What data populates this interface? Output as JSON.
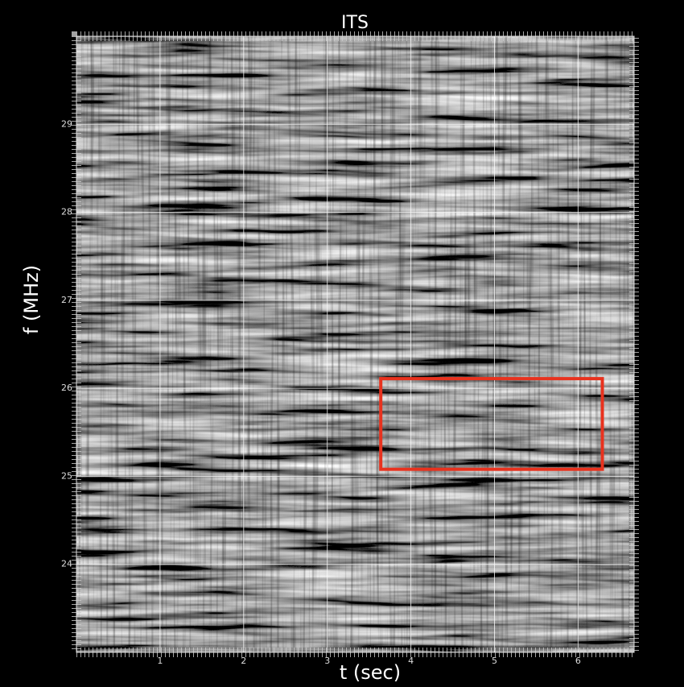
{
  "chart_data": {
    "type": "spectrogram",
    "title": "ITS",
    "x_label": "t (sec)",
    "y_label": "f (MHz)",
    "xlim": [
      0,
      6.67
    ],
    "ylim": [
      23,
      30
    ],
    "xticks": [
      1,
      2,
      3,
      4,
      5,
      6
    ],
    "yticks": [
      24,
      25,
      26,
      27,
      28,
      29
    ],
    "grid": true,
    "grid_color": "#ffffff",
    "highlight": {
      "x": [
        3.64,
        6.29
      ],
      "y": [
        25.08,
        26.11
      ],
      "color": "#e8321e"
    }
  }
}
